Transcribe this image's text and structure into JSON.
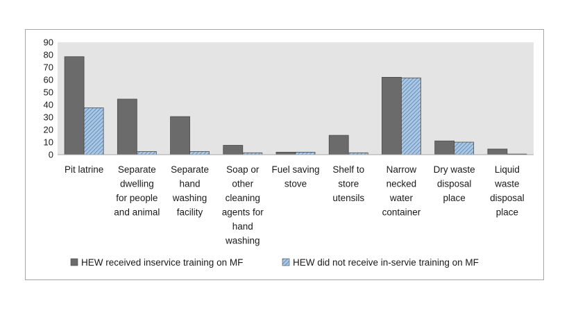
{
  "chart_data": {
    "type": "bar",
    "title": "",
    "xlabel": "",
    "ylabel": "",
    "ylim": [
      0,
      90
    ],
    "yticks": [
      0,
      10,
      20,
      30,
      40,
      50,
      60,
      70,
      80,
      90
    ],
    "grid": false,
    "legend_position": "bottom",
    "categories": [
      "Pit latrine",
      "Separate dwelling for people and animal",
      "Separate hand washing facility",
      "Soap or other cleaning agents for hand washing",
      "Fuel saving stove",
      "Shelf to store utensils",
      "Narrow necked water container",
      "Dry waste disposal place",
      "Liquid waste disposal place"
    ],
    "category_lines": [
      [
        "Pit latrine"
      ],
      [
        "Separate",
        "dwelling",
        "for people",
        "and animal"
      ],
      [
        "Separate",
        "hand",
        "washing",
        "facility"
      ],
      [
        "Soap or",
        "other",
        "cleaning",
        "agents for",
        "hand",
        "washing"
      ],
      [
        "Fuel saving",
        "stove"
      ],
      [
        "Shelf to",
        "store",
        "utensils"
      ],
      [
        "Narrow",
        "necked",
        "water",
        "container"
      ],
      [
        "Dry waste",
        "disposal",
        "place"
      ],
      [
        "Liquid",
        "waste",
        "disposal",
        "place"
      ]
    ],
    "series": [
      {
        "name": "HEW received inservice training on MF",
        "values": [
          78.5,
          44.5,
          30.5,
          7.5,
          2.0,
          15.5,
          62.0,
          11.0,
          4.5
        ],
        "color": "#6b6b6b",
        "pattern": "solid"
      },
      {
        "name": "HEW did not receive in-servie training on MF",
        "values": [
          37.5,
          2.5,
          2.5,
          1.5,
          2.0,
          1.5,
          61.5,
          10.0,
          0.5
        ],
        "color": "#a9c8e6",
        "pattern": "diagonal-hatch"
      }
    ],
    "colors": {
      "plot_background": "#e4e4e4",
      "axis": "#a6a6a6",
      "bar_edge": "#4a4a4a",
      "hatch_stripe": "#5a7fa8"
    }
  }
}
